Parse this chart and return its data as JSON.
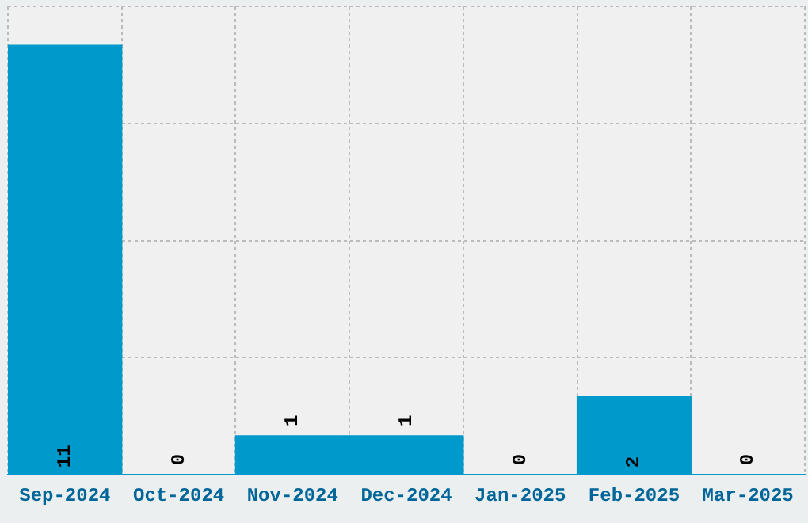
{
  "chart_data": {
    "type": "bar",
    "categories": [
      "Sep-2024",
      "Oct-2024",
      "Nov-2024",
      "Dec-2024",
      "Jan-2025",
      "Feb-2025",
      "Mar-2025"
    ],
    "values": [
      11,
      0,
      1,
      1,
      0,
      2,
      0
    ],
    "color": "#0099cc",
    "ylim": [
      0,
      12
    ],
    "yticks": [
      {
        "value": 0,
        "label": null
      },
      {
        "value": 3,
        "label": null
      },
      {
        "value": 6,
        "label": null
      },
      {
        "value": 9,
        "label": null
      },
      {
        "value": 12,
        "label": null
      }
    ],
    "grid": true,
    "data_labels": true,
    "tick_labels": "x",
    "line_style": "dashed"
  }
}
